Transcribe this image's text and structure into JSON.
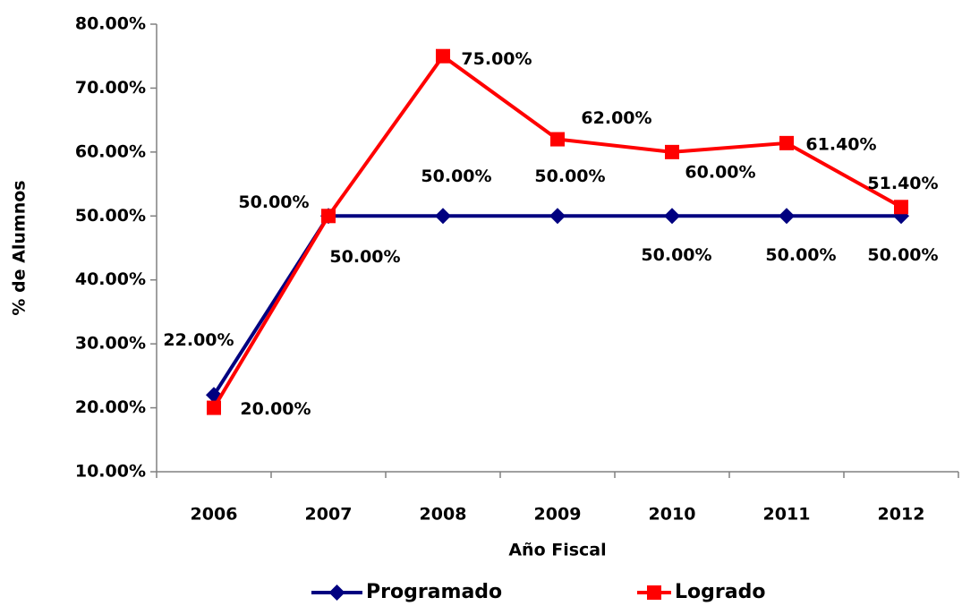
{
  "chart_data": {
    "type": "line",
    "x_label": "Año Fiscal",
    "y_label": "% de Alumnos",
    "categories": [
      "2006",
      "2007",
      "2008",
      "2009",
      "2010",
      "2011",
      "2012"
    ],
    "ylim": [
      10,
      80
    ],
    "yticks": [
      {
        "value": 10,
        "label": "10.00%"
      },
      {
        "value": 20,
        "label": "20.00%"
      },
      {
        "value": 30,
        "label": "30.00%"
      },
      {
        "value": 40,
        "label": "40.00%"
      },
      {
        "value": 50,
        "label": "50.00%"
      },
      {
        "value": 60,
        "label": "60.00%"
      },
      {
        "value": 70,
        "label": "70.00%"
      },
      {
        "value": 80,
        "label": "80.00%"
      }
    ],
    "legend": "bottom",
    "series": [
      {
        "name": "Programado",
        "color": "#000080",
        "marker": "diamond",
        "values": [
          22,
          50,
          50,
          50,
          50,
          50,
          50
        ],
        "value_labels": [
          "22.00%",
          "50.00%",
          "50.00%",
          "50.00%",
          "50.00%",
          "50.00%",
          "50.00%"
        ]
      },
      {
        "name": "Logrado",
        "color": "#ff0000",
        "marker": "square",
        "values": [
          20,
          50,
          75,
          62,
          60,
          61.4,
          51.4
        ],
        "value_labels": [
          "20.00%",
          "50.00%",
          "75.00%",
          "62.00%",
          "60.00%",
          "61.40%",
          "51.40%"
        ]
      }
    ]
  }
}
